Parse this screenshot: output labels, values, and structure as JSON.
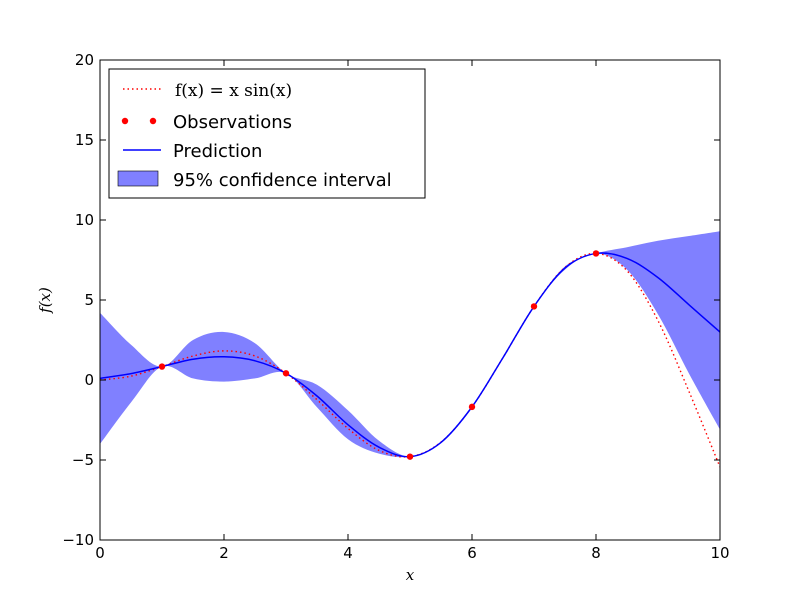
{
  "chart_data": {
    "type": "line",
    "title": "",
    "xlabel": "x",
    "ylabel": "f(x)",
    "xlim": [
      0,
      10
    ],
    "ylim": [
      -10,
      20
    ],
    "xticks": [
      0,
      2,
      4,
      6,
      8,
      10
    ],
    "yticks": [
      -10,
      -5,
      0,
      5,
      10,
      15,
      20
    ],
    "grid": false,
    "legend_position": "top-left",
    "true_function": {
      "name": "f(x) = x sin(x)",
      "style": "dotted",
      "color": "#ff0000",
      "x": [
        0,
        0.5,
        1,
        1.5,
        2,
        2.5,
        3,
        3.5,
        4,
        4.5,
        5,
        5.5,
        6,
        6.5,
        7,
        7.5,
        8,
        8.5,
        9,
        9.5,
        10
      ],
      "y": [
        0,
        0.24,
        0.84,
        1.5,
        1.82,
        1.5,
        0.42,
        -1.23,
        -3.03,
        -4.4,
        -4.79,
        -3.88,
        -1.68,
        1.4,
        4.6,
        7.04,
        7.91,
        6.83,
        3.71,
        -0.72,
        -5.44
      ]
    },
    "observations": {
      "name": "Observations",
      "color": "#ff0000",
      "x": [
        1,
        3,
        5,
        6,
        7,
        8
      ],
      "y": [
        0.84,
        0.42,
        -4.79,
        -1.68,
        4.6,
        7.91
      ]
    },
    "prediction": {
      "name": "Prediction",
      "color": "#0000ff",
      "x": [
        0,
        0.5,
        1,
        1.5,
        2,
        2.5,
        3,
        3.5,
        4,
        4.5,
        5,
        5.5,
        6,
        6.5,
        7,
        7.5,
        8,
        8.5,
        9,
        9.5,
        10
      ],
      "y": [
        0.1,
        0.4,
        0.84,
        1.3,
        1.45,
        1.2,
        0.42,
        -1.0,
        -2.8,
        -4.2,
        -4.79,
        -3.9,
        -1.68,
        1.4,
        4.6,
        7.0,
        7.91,
        7.6,
        6.4,
        4.7,
        3.0
      ]
    },
    "confidence_interval": {
      "name": "95% confidence interval",
      "color": "#0000ff",
      "x": [
        0,
        0.5,
        1,
        1.5,
        2,
        2.5,
        3,
        3.5,
        4,
        4.5,
        5,
        5.5,
        6,
        6.5,
        7,
        7.5,
        8,
        8.5,
        9,
        9.5,
        10
      ],
      "upper": [
        4.2,
        2.2,
        0.84,
        2.5,
        3.0,
        2.3,
        0.42,
        -0.3,
        -1.9,
        -3.8,
        -4.79,
        -3.85,
        -1.68,
        1.4,
        4.6,
        7.1,
        7.91,
        8.3,
        8.7,
        9.0,
        9.3
      ],
      "lower": [
        -4.0,
        -1.4,
        0.84,
        0.1,
        -0.1,
        0.1,
        0.42,
        -1.7,
        -3.7,
        -4.6,
        -4.79,
        -3.95,
        -1.68,
        1.4,
        4.6,
        6.9,
        7.91,
        6.9,
        4.1,
        0.4,
        -3.1
      ]
    }
  },
  "colors": {
    "observation": "#ff0000",
    "prediction": "#0000ff",
    "band_fill": "#8080ff"
  }
}
